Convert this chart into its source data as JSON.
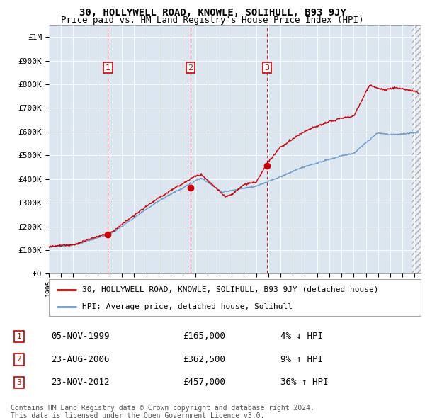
{
  "title": "30, HOLLYWELL ROAD, KNOWLE, SOLIHULL, B93 9JY",
  "subtitle": "Price paid vs. HM Land Registry's House Price Index (HPI)",
  "ylabel_ticks": [
    "£0",
    "£100K",
    "£200K",
    "£300K",
    "£400K",
    "£500K",
    "£600K",
    "£700K",
    "£800K",
    "£900K",
    "£1M"
  ],
  "ytick_values": [
    0,
    100000,
    200000,
    300000,
    400000,
    500000,
    600000,
    700000,
    800000,
    900000,
    1000000
  ],
  "ylim": [
    0,
    1050000
  ],
  "xlim_start": 1995.0,
  "xlim_end": 2025.5,
  "transactions": [
    {
      "date": 1999.85,
      "price": 165000,
      "label": "1"
    },
    {
      "date": 2006.62,
      "price": 362500,
      "label": "2"
    },
    {
      "date": 2012.9,
      "price": 457000,
      "label": "3"
    }
  ],
  "vline_dates": [
    1999.85,
    2006.62,
    2012.9
  ],
  "legend_line1": "30, HOLLYWELL ROAD, KNOWLE, SOLIHULL, B93 9JY (detached house)",
  "legend_line2": "HPI: Average price, detached house, Solihull",
  "table_rows": [
    {
      "num": "1",
      "date": "05-NOV-1999",
      "price": "£165,000",
      "change": "4% ↓ HPI"
    },
    {
      "num": "2",
      "date": "23-AUG-2006",
      "price": "£362,500",
      "change": "9% ↑ HPI"
    },
    {
      "num": "3",
      "date": "23-NOV-2012",
      "price": "£457,000",
      "change": "36% ↑ HPI"
    }
  ],
  "footer": "Contains HM Land Registry data © Crown copyright and database right 2024.\nThis data is licensed under the Open Government Licence v3.0.",
  "plot_bg_color": "#dce6f1",
  "red_line_color": "#cc0000",
  "blue_line_color": "#6699cc",
  "grid_color": "#ffffff",
  "hatch_color": "#c8d4e8",
  "title_fontsize": 10,
  "subtitle_fontsize": 9,
  "tick_fontsize": 8,
  "legend_fontsize": 8,
  "table_fontsize": 9,
  "footer_fontsize": 7
}
